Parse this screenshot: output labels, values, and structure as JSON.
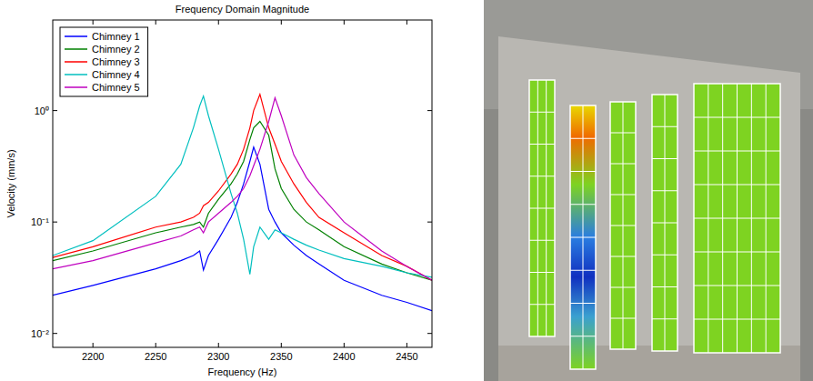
{
  "chart_data": {
    "type": "line",
    "title": "Frequency Domain Magnitude",
    "x_label": "Frequency (Hz)",
    "y_label": "Velocity (mm/s)",
    "log": "y",
    "grid": false,
    "legend": "upper left",
    "xlim": [
      2168,
      2470
    ],
    "xticks": [
      2200,
      2250,
      2300,
      2350,
      2400,
      2450
    ],
    "ylim": [
      0.0075,
      6.5
    ],
    "yticks": [
      {
        "value": 0.01,
        "label": "10⁻²"
      },
      {
        "value": 0.1,
        "label": "10⁻¹"
      },
      {
        "value": 1,
        "label": "10⁰"
      }
    ],
    "x": [
      2168,
      2200,
      2250,
      2270,
      2280,
      2285,
      2288,
      2292,
      2300,
      2310,
      2315,
      2320,
      2325,
      2328,
      2333,
      2340,
      2345,
      2350,
      2360,
      2370,
      2380,
      2400,
      2430,
      2450,
      2470
    ],
    "series": [
      {
        "name": "Chimney 1",
        "color": "#0000ff",
        "values": [
          0.022,
          0.027,
          0.038,
          0.045,
          0.05,
          0.055,
          0.037,
          0.05,
          0.07,
          0.11,
          0.15,
          0.22,
          0.35,
          0.47,
          0.33,
          0.13,
          0.1,
          0.08,
          0.062,
          0.05,
          0.042,
          0.03,
          0.022,
          0.019,
          0.016
        ]
      },
      {
        "name": "Chimney 2",
        "color": "#008000",
        "values": [
          0.045,
          0.055,
          0.08,
          0.09,
          0.095,
          0.1,
          0.09,
          0.12,
          0.16,
          0.22,
          0.27,
          0.35,
          0.55,
          0.7,
          0.8,
          0.6,
          0.3,
          0.2,
          0.13,
          0.1,
          0.085,
          0.06,
          0.042,
          0.035,
          0.03
        ]
      },
      {
        "name": "Chimney 3",
        "color": "#ff0000",
        "values": [
          0.048,
          0.06,
          0.09,
          0.1,
          0.11,
          0.12,
          0.14,
          0.15,
          0.19,
          0.27,
          0.33,
          0.45,
          0.7,
          1.0,
          1.4,
          0.7,
          0.5,
          0.35,
          0.22,
          0.15,
          0.11,
          0.08,
          0.05,
          0.04,
          0.03
        ]
      },
      {
        "name": "Chimney 4",
        "color": "#00bfbf",
        "values": [
          0.05,
          0.068,
          0.17,
          0.33,
          0.7,
          1.1,
          1.35,
          0.9,
          0.45,
          0.18,
          0.12,
          0.07,
          0.034,
          0.06,
          0.09,
          0.07,
          0.085,
          0.08,
          0.07,
          0.062,
          0.056,
          0.047,
          0.04,
          0.035,
          0.032
        ]
      },
      {
        "name": "Chimney 5",
        "color": "#bf00bf",
        "values": [
          0.038,
          0.045,
          0.065,
          0.075,
          0.085,
          0.09,
          0.08,
          0.1,
          0.12,
          0.15,
          0.17,
          0.2,
          0.26,
          0.32,
          0.45,
          0.8,
          1.3,
          0.9,
          0.4,
          0.25,
          0.18,
          0.1,
          0.055,
          0.04,
          0.03
        ]
      }
    ]
  }
}
